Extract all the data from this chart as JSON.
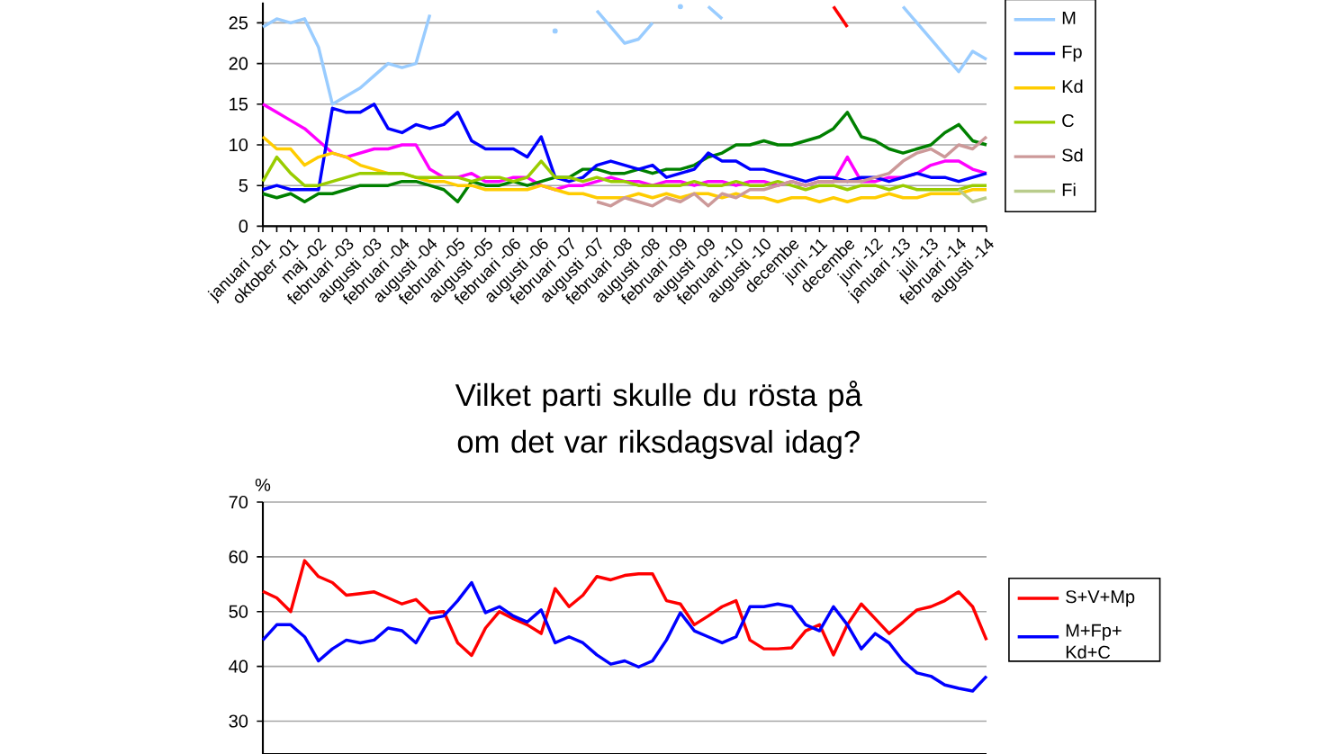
{
  "chart_data": [
    {
      "type": "line",
      "categories": [
        "januari -01",
        null,
        "oktober -01",
        null,
        "maj -02",
        null,
        "februari -03",
        null,
        "augusti -03",
        null,
        "februari -04",
        null,
        "augusti -04",
        null,
        "februari -05",
        null,
        "augusti -05",
        null,
        "februari -06",
        null,
        "augusti -06",
        null,
        "februari -07",
        null,
        "augusti -07",
        null,
        "februari -08",
        null,
        "augusti -08",
        null,
        "februari -09",
        null,
        "augusti -09",
        null,
        "februari -10",
        null,
        "augusti -10",
        null,
        "decembe",
        null,
        "juni -11",
        null,
        "decembe",
        null,
        "juni -12",
        null,
        "januari -13",
        null,
        "juli -13",
        null,
        "februari -14",
        null,
        "augusti -14"
      ],
      "series": [
        {
          "color": "#ff0000",
          "values": [
            null,
            null,
            null,
            null,
            null,
            null,
            null,
            null,
            null,
            null,
            null,
            null,
            null,
            null,
            null,
            null,
            null,
            null,
            null,
            null,
            null,
            null,
            null,
            null,
            null,
            null,
            null,
            null,
            null,
            null,
            null,
            null,
            null,
            null,
            null,
            null,
            null,
            null,
            null,
            null,
            null,
            27,
            24.5,
            null,
            null,
            null,
            null,
            null,
            null,
            null,
            null,
            null,
            null
          ]
        },
        {
          "color": "#ff00ff",
          "values": [
            15,
            14,
            13,
            12,
            10.5,
            9,
            8.5,
            9,
            9.5,
            9.5,
            10,
            10,
            7,
            6,
            6,
            6.5,
            5.5,
            5.5,
            6,
            6,
            5,
            4.5,
            5,
            5,
            5.5,
            6,
            5.5,
            5.5,
            5,
            5.5,
            5.5,
            5,
            5.5,
            5.5,
            5,
            5.5,
            5.5,
            5,
            5.5,
            5,
            5.5,
            5.5,
            8.5,
            5.5,
            5.5,
            6,
            6,
            6.5,
            7.5,
            8,
            8,
            7,
            6.5
          ]
        },
        {
          "color": "#008000",
          "values": [
            4,
            3.5,
            4,
            3,
            4,
            4,
            4.5,
            5,
            5,
            5,
            5.5,
            5.5,
            5,
            4.5,
            3,
            5.5,
            5,
            5,
            5.5,
            5,
            5.5,
            6,
            6,
            7,
            7,
            6.5,
            6.5,
            7,
            6.5,
            7,
            7,
            7.5,
            8.5,
            9,
            10,
            10,
            10.5,
            10,
            10,
            10.5,
            11,
            12,
            14,
            11,
            10.5,
            9.5,
            9,
            9.5,
            10,
            11.5,
            12.5,
            10.5,
            10
          ]
        },
        {
          "name": "M",
          "color": "#99ccff",
          "values": [
            24.5,
            25.5,
            25,
            25.5,
            22,
            15,
            16,
            17,
            18.5,
            20,
            19.5,
            20,
            26,
            null,
            null,
            null,
            null,
            null,
            null,
            null,
            null,
            24,
            null,
            null,
            26.5,
            24.5,
            22.5,
            23,
            25,
            null,
            27,
            null,
            27,
            25.5,
            null,
            null,
            null,
            null,
            null,
            null,
            null,
            null,
            null,
            null,
            null,
            null,
            27,
            25,
            23,
            21,
            19,
            21.5,
            20.5
          ]
        },
        {
          "name": "Fp",
          "color": "#0000ff",
          "values": [
            4.5,
            5,
            4.5,
            4.5,
            4.5,
            14.5,
            14,
            14,
            15,
            12,
            11.5,
            12.5,
            12,
            12.5,
            14,
            10.5,
            9.5,
            9.5,
            9.5,
            8.5,
            11,
            6,
            5.5,
            6,
            7.5,
            8,
            7.5,
            7,
            7.5,
            6,
            6.5,
            7,
            9,
            8,
            8,
            7,
            7,
            6.5,
            6,
            5.5,
            6,
            6,
            5.5,
            6,
            6,
            5.5,
            6,
            6.5,
            6,
            6,
            5.5,
            6,
            6.5
          ]
        },
        {
          "name": "Kd",
          "color": "#ffcc00",
          "values": [
            11,
            9.5,
            9.5,
            7.5,
            8.5,
            9,
            8.5,
            7.5,
            7,
            6.5,
            6.5,
            6,
            5.5,
            5.5,
            5,
            5,
            4.5,
            4.5,
            4.5,
            4.5,
            5,
            4.5,
            4,
            4,
            3.5,
            3.5,
            3.5,
            4,
            3.5,
            4,
            3.5,
            4,
            4,
            3.5,
            4,
            3.5,
            3.5,
            3,
            3.5,
            3.5,
            3,
            3.5,
            3,
            3.5,
            3.5,
            4,
            3.5,
            3.5,
            4,
            4,
            4,
            4.5,
            4.5
          ]
        },
        {
          "name": "C",
          "color": "#99cc00",
          "values": [
            5.5,
            8.5,
            6.5,
            5,
            5,
            5.5,
            6,
            6.5,
            6.5,
            6.5,
            6.5,
            6,
            6,
            6,
            6,
            5.5,
            6,
            6,
            5.5,
            6,
            8,
            6,
            6,
            5.5,
            6,
            5.5,
            5.5,
            5,
            5,
            5,
            5,
            5.5,
            5,
            5,
            5.5,
            5,
            5,
            5.5,
            5,
            4.5,
            5,
            5,
            4.5,
            5,
            5,
            4.5,
            5,
            4.5,
            4.5,
            4.5,
            4.5,
            5,
            5
          ]
        },
        {
          "name": "Sd",
          "color": "#cc9999",
          "values": [
            null,
            null,
            null,
            null,
            null,
            null,
            null,
            null,
            null,
            null,
            null,
            null,
            null,
            null,
            null,
            null,
            null,
            null,
            null,
            null,
            null,
            null,
            null,
            null,
            3,
            2.5,
            3.5,
            3,
            2.5,
            3.5,
            3,
            4,
            2.5,
            4,
            3.5,
            4.5,
            4.5,
            5,
            5.5,
            5,
            5.5,
            5.5,
            5.5,
            5.5,
            6,
            6.5,
            8,
            9,
            9.5,
            8.5,
            10,
            9.5,
            11
          ]
        },
        {
          "name": "Fi",
          "color": "#b9cc8c",
          "values": [
            null,
            null,
            null,
            null,
            null,
            null,
            null,
            null,
            null,
            null,
            null,
            null,
            null,
            null,
            null,
            null,
            null,
            null,
            null,
            null,
            null,
            null,
            null,
            null,
            null,
            null,
            null,
            null,
            null,
            null,
            null,
            null,
            null,
            null,
            null,
            null,
            null,
            null,
            null,
            null,
            null,
            null,
            null,
            null,
            null,
            null,
            null,
            null,
            null,
            null,
            4.5,
            3,
            3.5
          ]
        }
      ],
      "ylim": [
        0,
        27.5
      ],
      "yticks": [
        0,
        5,
        10,
        15,
        20,
        25
      ],
      "grid": "y",
      "legend": "right"
    },
    {
      "type": "line",
      "title": "Vilket parti skulle du rösta på om det var riksdagsval idag?",
      "ylabel": "%",
      "categories": [
        null,
        null,
        null,
        null,
        null,
        null,
        null,
        null,
        null,
        null,
        null,
        null,
        null,
        null,
        null,
        null,
        null,
        null,
        null,
        null,
        null,
        null,
        null,
        null,
        null,
        null,
        null,
        null,
        null,
        null,
        null,
        null,
        null,
        null,
        null,
        null,
        null,
        null,
        null,
        null,
        null,
        null,
        null,
        null,
        null,
        null,
        null,
        null,
        null,
        null,
        null,
        null,
        null
      ],
      "series": [
        {
          "name": "S+V+Mp",
          "color": "#ff0000",
          "values": [
            53.7,
            52.5,
            50,
            59.3,
            56.4,
            55.3,
            53,
            53.3,
            53.6,
            52.5,
            51.4,
            52.2,
            49.8,
            50,
            44.3,
            42,
            47,
            50,
            48.7,
            47.6,
            46,
            54.2,
            50.9,
            53,
            56.4,
            55.8,
            56.6,
            56.9,
            56.9,
            52,
            51.4,
            47.6,
            49.2,
            50.9,
            52,
            44.8,
            43.2,
            43.2,
            43.4,
            46.5,
            47.6,
            42.1,
            47.6,
            51.4,
            48.7,
            46,
            48.1,
            50.3,
            50.9,
            52,
            53.6,
            50.9,
            44.8
          ]
        },
        {
          "name": "M+Fp+ Kd+C",
          "color": "#0000ff",
          "values": [
            44.8,
            47.6,
            47.6,
            45.4,
            41,
            43.2,
            44.8,
            44.3,
            44.8,
            47,
            46.5,
            44.3,
            48.7,
            49.2,
            52,
            55.3,
            49.8,
            50.9,
            49.2,
            48.1,
            50.3,
            44.3,
            45.4,
            44.3,
            42.1,
            40.4,
            41,
            39.9,
            41,
            44.8,
            49.8,
            46.5,
            45.4,
            44.3,
            45.4,
            50.9,
            50.9,
            51.4,
            50.9,
            47.6,
            46.5,
            50.9,
            47.6,
            43.2,
            46,
            44.3,
            41,
            38.8,
            38.2,
            36.6,
            36,
            35.5,
            38.2
          ]
        }
      ],
      "ylim": [
        24,
        70
      ],
      "yticks": [
        30,
        40,
        50,
        60,
        70
      ],
      "grid": "y",
      "legend": "right"
    }
  ]
}
